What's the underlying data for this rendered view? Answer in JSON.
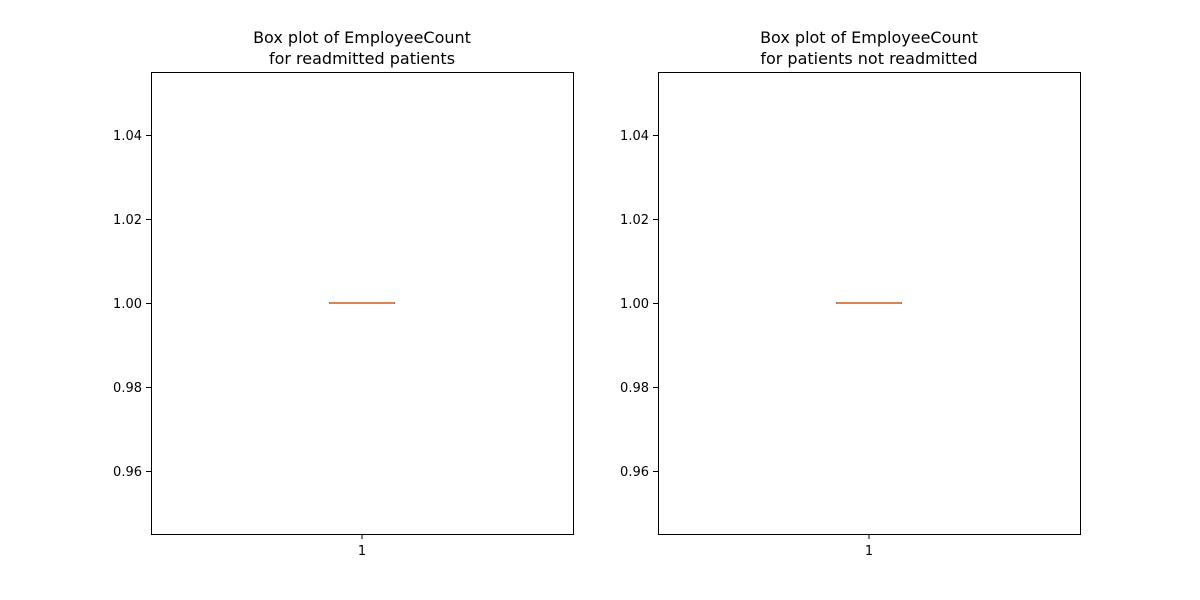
{
  "chart_data": [
    {
      "type": "box",
      "title": "Box plot of EmployeeCount\nfor readmitted patients",
      "categories": [
        "1"
      ],
      "boxes": [
        {
          "min": 1.0,
          "q1": 1.0,
          "median": 1.0,
          "q3": 1.0,
          "max": 1.0
        }
      ],
      "ylim": [
        0.945,
        1.055
      ],
      "yticks": [
        0.96,
        0.98,
        1.0,
        1.02,
        1.04
      ],
      "ytick_labels": [
        "0.96",
        "0.98",
        "1.00",
        "1.02",
        "1.04"
      ],
      "grid": false,
      "colors": {
        "box": "#000000",
        "median": "#dd8452"
      }
    },
    {
      "type": "box",
      "title": "Box plot of EmployeeCount\nfor patients not readmitted",
      "categories": [
        "1"
      ],
      "boxes": [
        {
          "min": 1.0,
          "q1": 1.0,
          "median": 1.0,
          "q3": 1.0,
          "max": 1.0
        }
      ],
      "ylim": [
        0.945,
        1.055
      ],
      "yticks": [
        0.96,
        0.98,
        1.0,
        1.02,
        1.04
      ],
      "ytick_labels": [
        "0.96",
        "0.98",
        "1.00",
        "1.02",
        "1.04"
      ],
      "grid": false,
      "colors": {
        "box": "#000000",
        "median": "#dd8452"
      }
    }
  ]
}
